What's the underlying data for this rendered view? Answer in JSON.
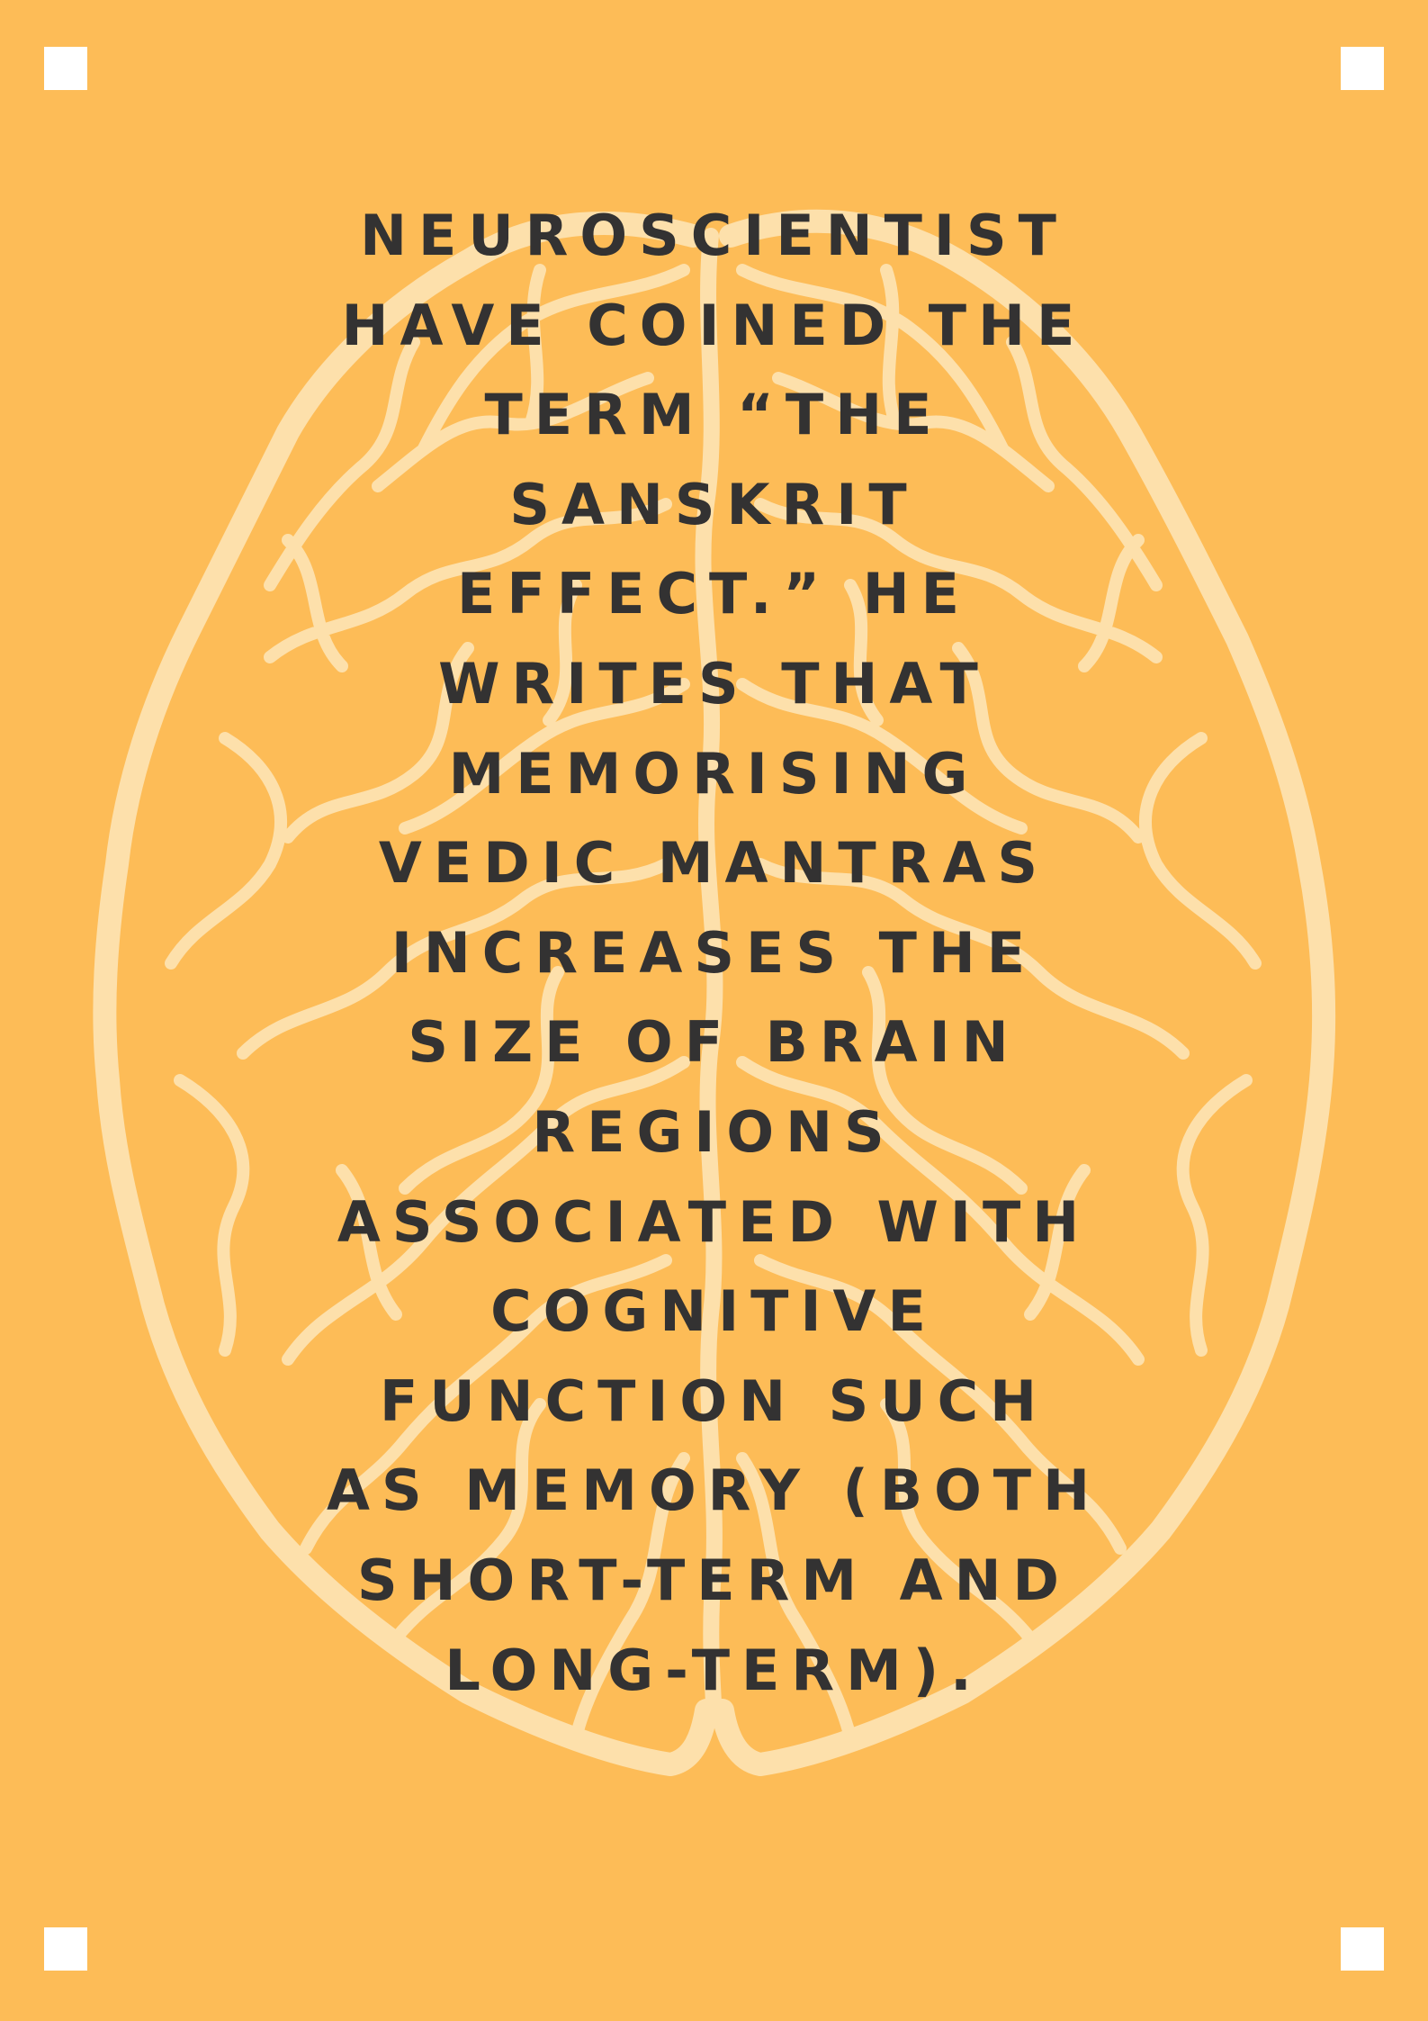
{
  "colors": {
    "background": "#fdbc57",
    "brain_outline": "#fde0ab",
    "text": "#333232",
    "corner_marks": "#ffffff"
  },
  "quote": {
    "lines": [
      "NEUROSCIENTIST",
      "HAVE COINED THE",
      "TERM “THE",
      "SANSKRIT",
      "EFFECT.” HE",
      "WRITES THAT",
      "MEMORISING",
      "VEDIC MANTRAS",
      "INCREASES THE",
      "SIZE OF BRAIN",
      "REGIONS",
      "ASSOCIATED WITH",
      "COGNITIVE",
      "FUNCTION SUCH",
      "AS MEMORY (BOTH",
      "SHORT-TERM AND",
      "LONG-TERM)."
    ]
  }
}
